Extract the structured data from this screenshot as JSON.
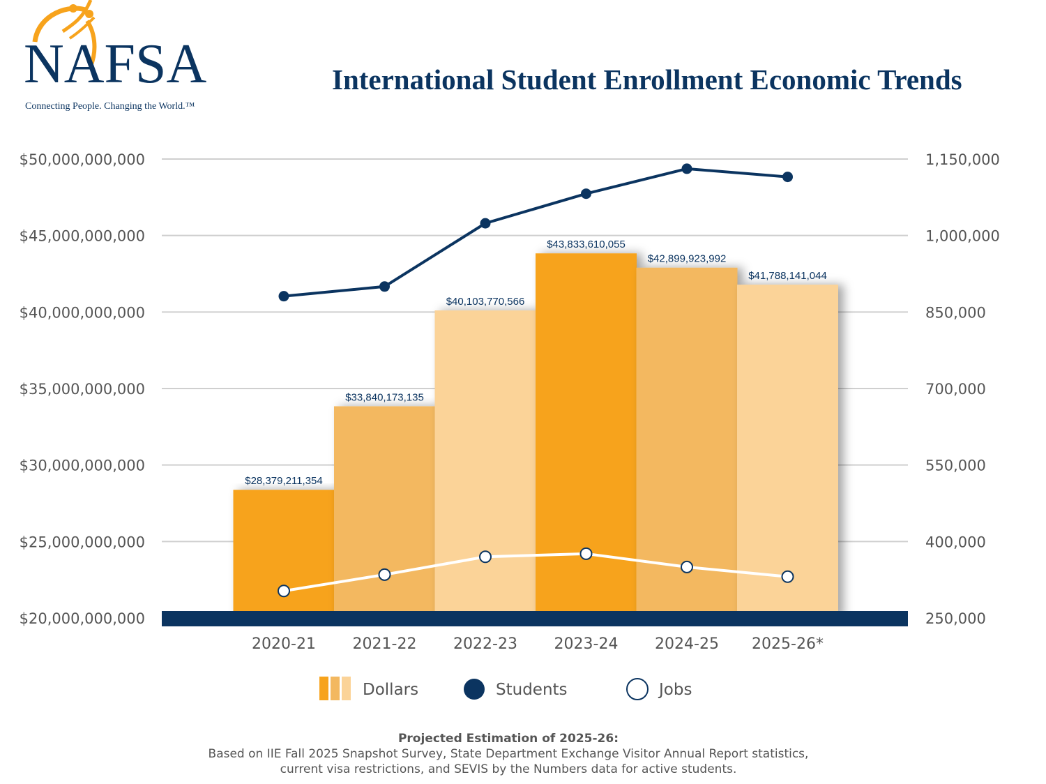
{
  "logo": {
    "name": "NAFSA",
    "tagline": "Connecting People. Changing the World.™"
  },
  "chart_data": {
    "type": "bar",
    "title": "International Student Enrollment Economic Trends",
    "categories": [
      "2020-21",
      "2021-22",
      "2022-23",
      "2023-24",
      "2024-25",
      "2025-26*"
    ],
    "series": [
      {
        "name": "Dollars",
        "type": "bar",
        "axis": "left",
        "values": [
          28379211354,
          33840173135,
          40103770566,
          43833610055,
          42899923992,
          41788141044
        ],
        "labels": [
          "$28,379,211,354",
          "$33,840,173,135",
          "$40,103,770,566",
          "$43,833,610,055",
          "$42,899,923,992",
          "$41,788,141,044"
        ],
        "colors": [
          "#F7A31C",
          "#F3B860",
          "#FBD398",
          "#F7A31C",
          "#F3B860",
          "#FBD398"
        ]
      },
      {
        "name": "Students",
        "type": "line",
        "axis": "right",
        "color": "#0B3460",
        "values": [
          881000,
          900000,
          1024000,
          1082000,
          1131000,
          1115000
        ]
      },
      {
        "name": "Jobs",
        "type": "line",
        "axis": "right",
        "color": "#FFFFFF",
        "values": [
          303000,
          335000,
          370000,
          376000,
          350000,
          331000
        ]
      }
    ],
    "left_axis": {
      "range": [
        20000000000,
        50000000000
      ],
      "ticks": [
        "$20,000,000,000",
        "$25,000,000,000",
        "$30,000,000,000",
        "$35,000,000,000",
        "$40,000,000,000",
        "$45,000,000,000",
        "$50,000,000,000"
      ]
    },
    "right_axis": {
      "range": [
        250000,
        1150000
      ],
      "ticks": [
        "250,000",
        "400,000",
        "550,000",
        "700,000",
        "850,000",
        "1,000,000",
        "1,150,000"
      ]
    },
    "grid": true,
    "legend": {
      "placement": "bottom",
      "items": [
        "Dollars",
        "Students",
        "Jobs"
      ]
    }
  },
  "footer": {
    "heading": "Projected Estimation of 2025-26:",
    "line1": "Based on IIE Fall 2025 Snapshot Survey, State Department Exchange Visitor Annual Report statistics,",
    "line2": "current visa restrictions, and SEVIS by the Numbers data for active students."
  }
}
